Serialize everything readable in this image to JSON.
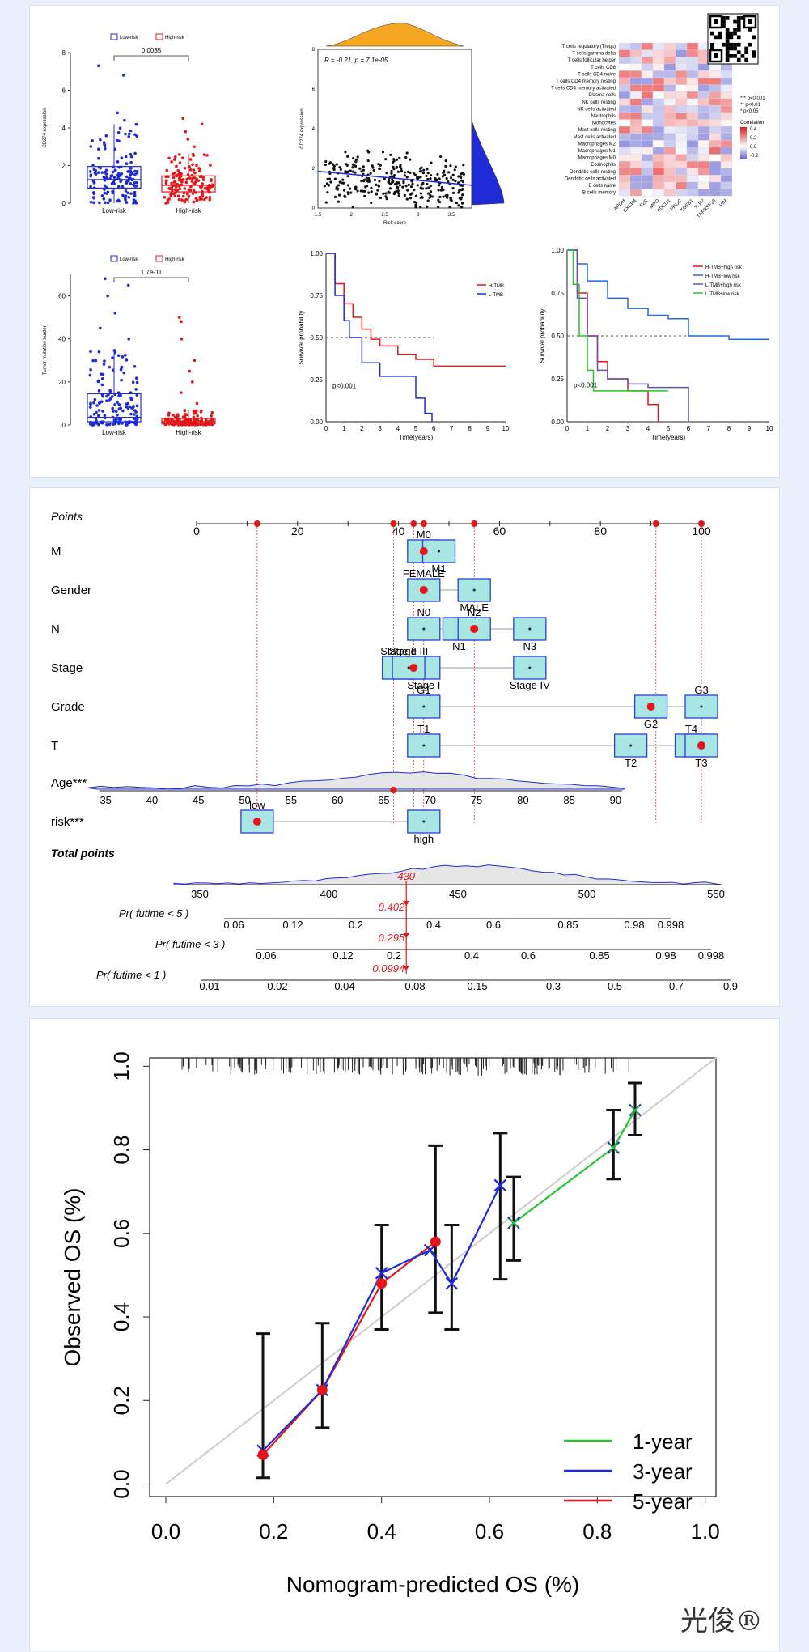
{
  "colors": {
    "blue": "#1f2bd6",
    "red": "#e3171b",
    "green": "#27c42b",
    "orange": "#f5a623",
    "grey": "#bdbdbd"
  },
  "panel1": {
    "chart_data": [
      {
        "type": "box",
        "legend": [
          "Low-risk",
          "High-risk"
        ],
        "categories": [
          "Low-risk",
          "High-risk"
        ],
        "ylabel": "CD274 expression",
        "ylim": [
          0,
          8
        ],
        "yticks": [
          0,
          2,
          4,
          6,
          8
        ],
        "pvalue": "0.0035",
        "series": [
          {
            "name": "Low-risk",
            "q1": 0.8,
            "median": 1.25,
            "q3": 1.95,
            "min": 0.0,
            "max": 4.2,
            "outliers": [
              4.4,
              4.8,
              6.8,
              7.3
            ]
          },
          {
            "name": "High-risk",
            "q1": 0.6,
            "median": 0.95,
            "q3": 1.45,
            "min": 0.0,
            "max": 2.6,
            "outliers": [
              3.0,
              3.4,
              3.8,
              4.2,
              4.5
            ]
          }
        ]
      },
      {
        "type": "scatter",
        "annotation": "R = -0.21, p = 7.1e-05",
        "xlabel": "Risk score",
        "ylabel": "CD274 expression",
        "xlim": [
          1.5,
          3.8
        ],
        "ylim": [
          0,
          8
        ],
        "xticks": [
          1.5,
          2.0,
          2.5,
          3.0,
          3.5
        ],
        "yticks": [
          0,
          2,
          4,
          6,
          8
        ],
        "fit": {
          "x": [
            1.5,
            3.8
          ],
          "y": [
            1.85,
            1.15
          ]
        }
      },
      {
        "type": "heatmap",
        "rows": [
          "T cells regulatory (Tregs)",
          "T cells gamma delta",
          "T cells follicular helper",
          "T cells CD8",
          "T cells CD4 naive",
          "T cells CD4 memory resting",
          "T cells CD4 memory activated",
          "Plasma cells",
          "NK cells resting",
          "NK cells activated",
          "Neutrophils",
          "Monocytes",
          "Mast cells resting",
          "Mast cells activated",
          "Macrophages M2",
          "Macrophages M1",
          "Macrophages M0",
          "Eosinophils",
          "Dendritic cells resting",
          "Dendritic cells activated",
          "B cells naive",
          "B cells memory"
        ],
        "columns": [
          "APOH",
          "CXCR4",
          "F2R",
          "MPO",
          "PDCD1",
          "PROC",
          "TGFB1",
          "TLR7",
          "TNFRSF18",
          "VIM"
        ],
        "legend_title": "Correlation",
        "legend_ticks": [
          "0.4",
          "0.2",
          "0.0",
          "-0.2"
        ],
        "significance": [
          "*** p<0.001",
          "** p<0.01",
          "* p<0.05"
        ]
      },
      {
        "type": "box",
        "legend": [
          "Low-risk",
          "High-risk"
        ],
        "categories": [
          "Low-risk",
          "High-risk"
        ],
        "ylabel": "Tumor mutation burden",
        "ylim": [
          0,
          70
        ],
        "yticks": [
          0,
          20,
          40,
          60
        ],
        "pvalue": "1.7e-11",
        "series": [
          {
            "name": "Low-risk",
            "q1": 1.5,
            "median": 3.5,
            "q3": 14.5,
            "min": 0,
            "max": 35,
            "outliers": [
              40,
              45,
              52,
              60,
              65,
              68
            ]
          },
          {
            "name": "High-risk",
            "q1": 0.5,
            "median": 1.5,
            "q3": 3.0,
            "min": 0,
            "max": 7,
            "outliers": [
              10,
              15,
              20,
              25,
              30,
              40,
              48,
              50
            ]
          }
        ]
      },
      {
        "type": "line",
        "xlabel": "Time(years)",
        "ylabel": "Survival probability",
        "xlim": [
          0,
          10
        ],
        "ylim": [
          0,
          1
        ],
        "xticks": [
          0,
          1,
          2,
          3,
          4,
          5,
          6,
          7,
          8,
          9,
          10
        ],
        "yticks": [
          "0.00",
          "0.25",
          "0.50",
          "0.75",
          "1.00"
        ],
        "pvalue": "p<0.001",
        "series": [
          {
            "name": "H-TMB",
            "x": [
              0,
              0.5,
              1,
              1.5,
              2,
              2.5,
              3,
              4,
              5,
              6,
              7,
              8,
              10
            ],
            "y": [
              1.0,
              0.82,
              0.7,
              0.62,
              0.55,
              0.49,
              0.45,
              0.4,
              0.37,
              0.33,
              0.33,
              0.33,
              0.33
            ]
          },
          {
            "name": "L-TMB",
            "x": [
              0,
              0.5,
              1,
              1.3,
              2,
              3,
              4,
              5,
              5.5,
              5.9
            ],
            "y": [
              1.0,
              0.75,
              0.6,
              0.5,
              0.35,
              0.27,
              0.27,
              0.14,
              0.05,
              0.0
            ]
          }
        ]
      },
      {
        "type": "line",
        "xlabel": "Time(years)",
        "ylabel": "Survival probability",
        "xlim": [
          0,
          10
        ],
        "ylim": [
          0,
          1
        ],
        "xticks": [
          0,
          1,
          2,
          3,
          4,
          5,
          6,
          7,
          8,
          9,
          10
        ],
        "yticks": [
          "0.00",
          "0.25",
          "0.50",
          "0.75",
          "1.00"
        ],
        "pvalue": "p<0.001",
        "series": [
          {
            "name": "H-TMB+high risk",
            "x": [
              0,
              0.5,
              1,
              1.5,
              2,
              3,
              4,
              4.5
            ],
            "y": [
              1.0,
              0.75,
              0.5,
              0.35,
              0.25,
              0.18,
              0.1,
              0.0
            ]
          },
          {
            "name": "H-TMB+low risk",
            "x": [
              0,
              0.5,
              1,
              2,
              3,
              4,
              5,
              6,
              8,
              10
            ],
            "y": [
              1.0,
              0.92,
              0.82,
              0.72,
              0.66,
              0.62,
              0.6,
              0.5,
              0.48,
              0.48
            ]
          },
          {
            "name": "L-TMB+high risk",
            "x": [
              0,
              0.5,
              1,
              1.5,
              2,
              3,
              4,
              5,
              6
            ],
            "y": [
              1.0,
              0.72,
              0.5,
              0.3,
              0.25,
              0.22,
              0.2,
              0.2,
              0.0
            ]
          },
          {
            "name": "L-TMB+low risk",
            "x": [
              0,
              0.3,
              0.6,
              1,
              1.3,
              2,
              3,
              5
            ],
            "y": [
              1.0,
              0.8,
              0.5,
              0.3,
              0.18,
              0.18,
              0.18,
              0.18
            ]
          }
        ]
      }
    ]
  },
  "panel2": {
    "chart_data": {
      "type": "nomogram",
      "points_label": "Points",
      "points_ticks": [
        0,
        20,
        40,
        60,
        80,
        100
      ],
      "rows": [
        {
          "name": "M",
          "levels": [
            {
              "label": "M0",
              "points": 45
            },
            {
              "label": "M1",
              "points": 48
            }
          ]
        },
        {
          "name": "Gender",
          "levels": [
            {
              "label": "FEMALE",
              "points": 45
            },
            {
              "label": "MALE",
              "points": 55
            }
          ]
        },
        {
          "name": "N",
          "levels": [
            {
              "label": "N0",
              "points": 45
            },
            {
              "label": "N1",
              "points": 52
            },
            {
              "label": "N2",
              "points": 55
            },
            {
              "label": "N3",
              "points": 66
            }
          ]
        },
        {
          "name": "Stage",
          "levels": [
            {
              "label": "Stage II",
              "points": 40
            },
            {
              "label": "Stage I",
              "points": 45
            },
            {
              "label": "Stage III",
              "points": 42
            },
            {
              "label": "Stage IV",
              "points": 66
            }
          ]
        },
        {
          "name": "Grade",
          "levels": [
            {
              "label": "G1",
              "points": 45
            },
            {
              "label": "G2",
              "points": 90
            },
            {
              "label": "G3",
              "points": 100
            }
          ]
        },
        {
          "name": "T",
          "levels": [
            {
              "label": "T1",
              "points": 45
            },
            {
              "label": "T2",
              "points": 86
            },
            {
              "label": "T4",
              "points": 98
            },
            {
              "label": "T3",
              "points": 100
            }
          ]
        },
        {
          "name": "Age***",
          "ticks": [
            35,
            40,
            45,
            50,
            55,
            60,
            65,
            70,
            75,
            80,
            85,
            90
          ]
        },
        {
          "name": "risk***",
          "levels": [
            {
              "label": "low",
              "points": 12
            },
            {
              "label": "high",
              "points": 45
            }
          ]
        }
      ],
      "total_points_label": "Total points",
      "total_ticks": [
        350,
        400,
        450,
        500,
        550
      ],
      "total_value": "430",
      "prob_rows": [
        {
          "label": "Pr( futime < 5 )",
          "value": "0.402",
          "ticks": [
            "0.06",
            "0.12",
            "0.2",
            "0.4",
            "0.6",
            "0.85",
            "0.98",
            "0.998"
          ]
        },
        {
          "label": "Pr( futime < 3 )",
          "value": "0.295",
          "ticks": [
            "0.06",
            "0.12",
            "0.2",
            "0.4",
            "0.6",
            "0.85",
            "0.98",
            "0.998"
          ]
        },
        {
          "label": "Pr( futime < 1 )",
          "value": "0.0994",
          "ticks": [
            "0.01",
            "0.02",
            "0.04",
            "0.08",
            "0.15",
            "0.3",
            "0.5",
            "0.7",
            "0.9"
          ]
        }
      ]
    }
  },
  "panel3": {
    "chart_data": {
      "type": "line",
      "xlabel": "Nomogram-predicted OS (%)",
      "ylabel": "Observed OS (%)",
      "xlim": [
        0,
        1.0
      ],
      "ylim": [
        0,
        1.0
      ],
      "xticks": [
        "0.0",
        "0.2",
        "0.4",
        "0.6",
        "0.8",
        "1.0"
      ],
      "yticks": [
        "0.0",
        "0.2",
        "0.4",
        "0.6",
        "0.8",
        "1.0"
      ],
      "series": [
        {
          "name": "1-year",
          "x": [
            0.645,
            0.83,
            0.87
          ],
          "y": [
            0.625,
            0.805,
            0.895
          ]
        },
        {
          "name": "3-year",
          "x": [
            0.18,
            0.29,
            0.4,
            0.49,
            0.53,
            0.62,
            0.645,
            0.83,
            0.87
          ],
          "y": [
            0.08,
            0.225,
            0.505,
            0.56,
            0.48,
            0.715,
            0.625,
            0.805,
            0.895
          ]
        },
        {
          "name": "5-year",
          "x": [
            0.18,
            0.29,
            0.4,
            0.5
          ],
          "y": [
            0.07,
            0.225,
            0.48,
            0.58
          ]
        }
      ],
      "errorbars": [
        {
          "x": 0.18,
          "lo": 0.015,
          "hi": 0.36
        },
        {
          "x": 0.29,
          "lo": 0.135,
          "hi": 0.385
        },
        {
          "x": 0.4,
          "lo": 0.37,
          "hi": 0.62
        },
        {
          "x": 0.5,
          "lo": 0.41,
          "hi": 0.81
        },
        {
          "x": 0.53,
          "lo": 0.37,
          "hi": 0.62
        },
        {
          "x": 0.62,
          "lo": 0.49,
          "hi": 0.84
        },
        {
          "x": 0.645,
          "lo": 0.535,
          "hi": 0.735
        },
        {
          "x": 0.83,
          "lo": 0.73,
          "hi": 0.895
        },
        {
          "x": 0.87,
          "lo": 0.835,
          "hi": 0.96
        }
      ]
    }
  },
  "watermark": "光俊®"
}
